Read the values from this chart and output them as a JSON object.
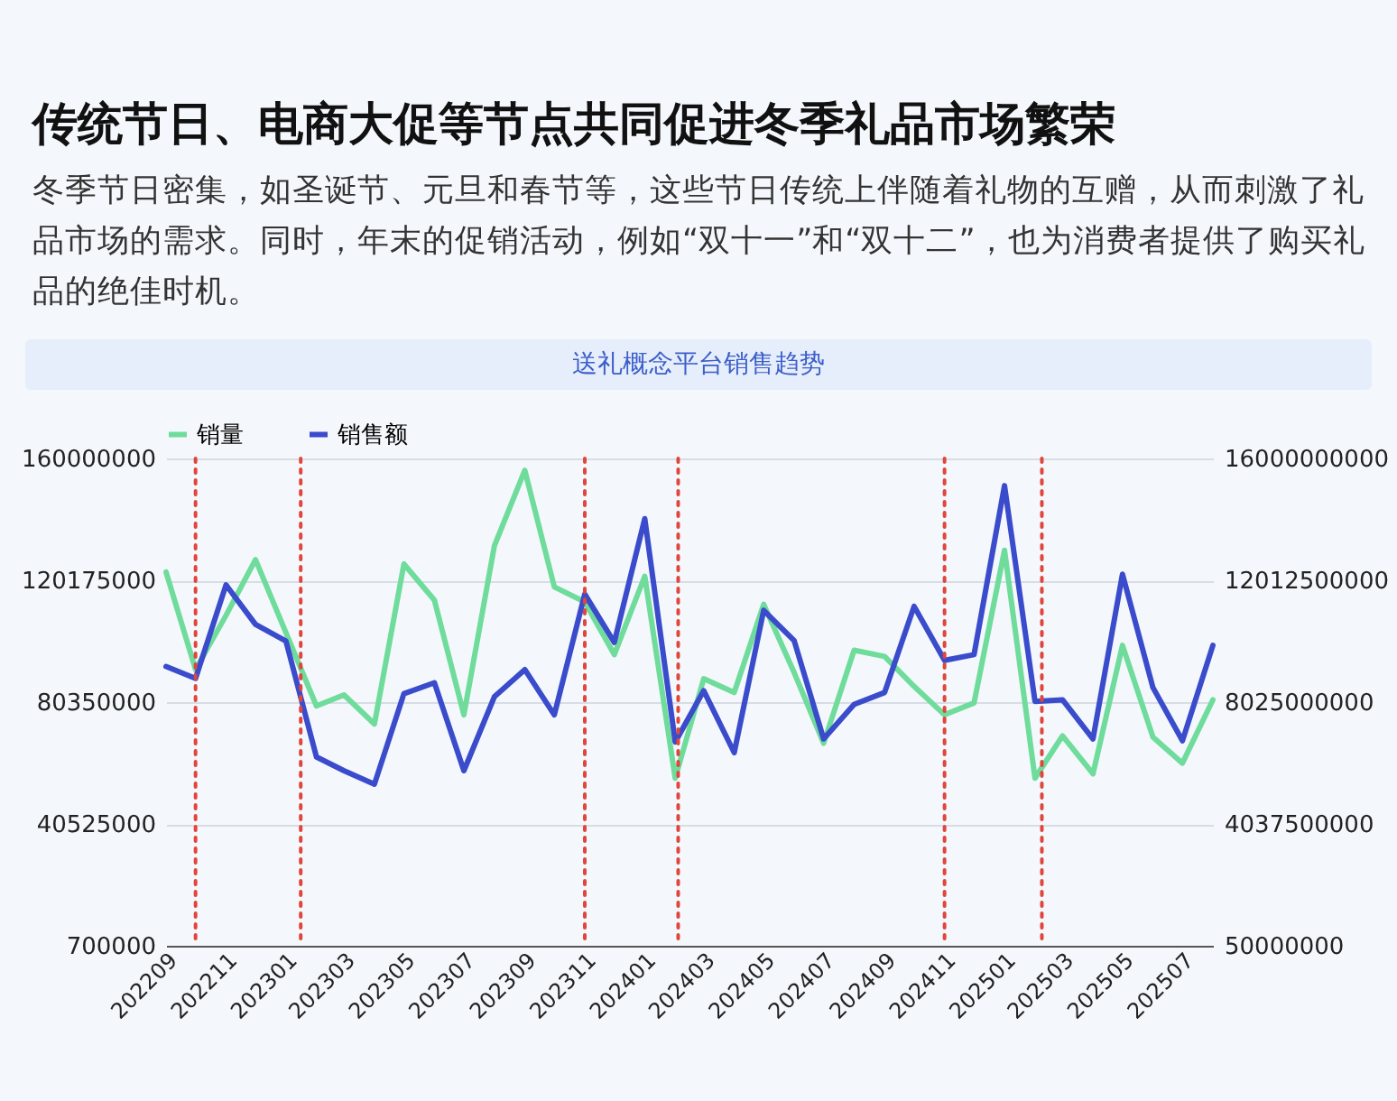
{
  "chart_data": {
    "type": "line",
    "title": "传统节日、电商大促等节点共同促进冬季礼品市场繁荣",
    "subtitle": "冬季节日密集，如圣诞节、元旦和春节等，这些节日传统上伴随着礼物的互赠，从而刺激了礼品市场的需求。同时，年末的促销活动，例如“双十一”和“双十二”，也为消费者提供了购买礼品的绝佳时机。",
    "annotations": [
      "送礼概念平台销售趋势"
    ],
    "x": [
      "2022-09",
      "2022-10",
      "2022-11",
      "2022-12",
      "2023-01",
      "2023-02",
      "2023-03",
      "2023-04",
      "2023-05",
      "2023-06",
      "2023-07",
      "2023-08",
      "2023-09",
      "2023-10",
      "2023-11",
      "2023-12",
      "2024-01",
      "2024-02",
      "2024-03",
      "2024-04",
      "2024-05",
      "2024-06",
      "2024-07",
      "2024-08",
      "2024-09",
      "2024-10",
      "2024-11",
      "2024-12",
      "2025-01",
      "2025-02",
      "2025-03",
      "2025-04",
      "2025-05",
      "2025-06",
      "2025-07",
      "2025-08"
    ],
    "series": [
      {
        "name": "销量",
        "color": "#6fdc9c",
        "axis": "y",
        "values": [
          122900000,
          91000000,
          108700000,
          126900000,
          103000000,
          79100000,
          82700000,
          73200000,
          125500000,
          113700000,
          76200000,
          131400000,
          156100000,
          118000000,
          113100000,
          95900000,
          121500000,
          55500000,
          88000000,
          83500000,
          112300000,
          90000000,
          66900000,
          97300000,
          95300000,
          85500000,
          76200000,
          80100000,
          130000000,
          55500000,
          69300000,
          56900000,
          98900000,
          68900000,
          60400000,
          81100000
        ]
      },
      {
        "name": "销售额",
        "color": "#3a4bcc",
        "axis": "y2",
        "values": [
          9190000000,
          8800000000,
          11860000000,
          10570000000,
          10020000000,
          6230000000,
          5780000000,
          5340000000,
          8300000000,
          8660000000,
          5780000000,
          8200000000,
          9090000000,
          7610000000,
          11560000000,
          9980000000,
          14030000000,
          6720000000,
          8400000000,
          6370000000,
          11030000000,
          10040000000,
          6820000000,
          7950000000,
          8340000000,
          11160000000,
          9390000000,
          9580000000,
          15110000000,
          8050000000,
          8100000000,
          6820000000,
          12210000000,
          8500000000,
          6760000000,
          9880000000
        ]
      }
    ],
    "xlim": [
      "2022-09",
      "2025-08"
    ],
    "xticks": [
      {
        "value": "2022-09",
        "label": "202209"
      },
      {
        "value": "2022-11",
        "label": "202211"
      },
      {
        "value": "2023-01",
        "label": "202301"
      },
      {
        "value": "2023-03",
        "label": "202303"
      },
      {
        "value": "2023-05",
        "label": "202305"
      },
      {
        "value": "2023-07",
        "label": "202307"
      },
      {
        "value": "2023-09",
        "label": "202309"
      },
      {
        "value": "2023-11",
        "label": "202311"
      },
      {
        "value": "2024-01",
        "label": "202401"
      },
      {
        "value": "2024-03",
        "label": "202403"
      },
      {
        "value": "2024-05",
        "label": "202405"
      },
      {
        "value": "2024-07",
        "label": "202407"
      },
      {
        "value": "2024-09",
        "label": "202409"
      },
      {
        "value": "2024-11",
        "label": "202411"
      },
      {
        "value": "2025-01",
        "label": "202501"
      },
      {
        "value": "2025-03",
        "label": "202503"
      },
      {
        "value": "2025-05",
        "label": "202505"
      },
      {
        "value": "2025-07",
        "label": "202507"
      }
    ],
    "ylim": [
      700000,
      160000000
    ],
    "yticks": [
      700000,
      40525000,
      80350000,
      120175000,
      160000000
    ],
    "y2lim": [
      50000000,
      16000000000
    ],
    "y2ticks": [
      50000000,
      4037500000,
      8025000000,
      12012500000,
      16000000000
    ],
    "ref_lines": [
      {
        "axis": "x",
        "value": "2022-10",
        "color": "#e0463c",
        "line_style": "dotted"
      },
      {
        "axis": "x",
        "value": "2023-01-16",
        "color": "#e0463c",
        "line_style": "dotted"
      },
      {
        "axis": "x",
        "value": "2023-11",
        "color": "#e0463c",
        "line_style": "dotted"
      },
      {
        "axis": "x",
        "value": "2024-02-04",
        "color": "#e0463c",
        "line_style": "dotted"
      },
      {
        "axis": "x",
        "value": "2024-11",
        "color": "#e0463c",
        "line_style": "dotted"
      },
      {
        "axis": "x",
        "value": "2025-02-08",
        "color": "#e0463c",
        "line_style": "dotted"
      }
    ],
    "grid": "y",
    "legend": "top left",
    "marker": "none",
    "line_style": "solid"
  }
}
